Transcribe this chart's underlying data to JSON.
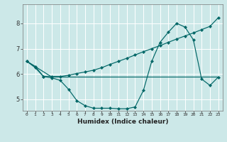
{
  "xlabel": "Humidex (Indice chaleur)",
  "bg_color": "#cce8e8",
  "grid_color": "#ffffff",
  "line_color": "#006666",
  "xlim": [
    -0.5,
    23.5
  ],
  "ylim": [
    4.55,
    8.75
  ],
  "xticks": [
    0,
    1,
    2,
    3,
    4,
    5,
    6,
    7,
    8,
    9,
    10,
    11,
    12,
    13,
    14,
    15,
    16,
    17,
    18,
    19,
    20,
    21,
    22,
    23
  ],
  "yticks": [
    5,
    6,
    7,
    8
  ],
  "line1_x": [
    0,
    1,
    2,
    3,
    4,
    5,
    6,
    7,
    8,
    9,
    10,
    11,
    12,
    13,
    14,
    15,
    16,
    17,
    18,
    19,
    20,
    21,
    22,
    23
  ],
  "line1_y": [
    6.5,
    6.25,
    5.9,
    5.85,
    5.75,
    5.4,
    4.95,
    4.75,
    4.65,
    4.65,
    4.65,
    4.63,
    4.63,
    4.7,
    5.35,
    6.5,
    7.25,
    7.65,
    8.0,
    7.85,
    7.35,
    5.8,
    5.55,
    5.88
  ],
  "line2_x": [
    0,
    1,
    2,
    3,
    4,
    5,
    6,
    7,
    8,
    9,
    10,
    11,
    12,
    13,
    14,
    15,
    16,
    17,
    18,
    19,
    20,
    21,
    22,
    23
  ],
  "line2_y": [
    6.5,
    6.3,
    5.9,
    5.9,
    5.9,
    5.95,
    6.02,
    6.08,
    6.15,
    6.25,
    6.38,
    6.5,
    6.62,
    6.75,
    6.88,
    7.0,
    7.12,
    7.25,
    7.38,
    7.5,
    7.62,
    7.75,
    7.88,
    8.22
  ],
  "line3_x": [
    0,
    3,
    21,
    23
  ],
  "line3_y": [
    6.5,
    5.88,
    5.88,
    5.88
  ]
}
